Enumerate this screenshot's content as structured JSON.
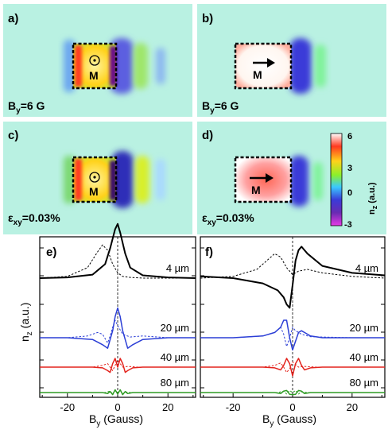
{
  "maps": [
    {
      "id": "a",
      "label": "a)",
      "field_main": "B",
      "field_sub": "y",
      "field_rest": "=6 G",
      "magnet_label": "M",
      "magnet_symbol": "⊙",
      "orientation": "out-of-plane",
      "strain": false
    },
    {
      "id": "b",
      "label": "b)",
      "field_main": "B",
      "field_sub": "y",
      "field_rest": "=6 G",
      "magnet_label": "M",
      "magnet_symbol": "→",
      "orientation": "in-plane",
      "strain": false
    },
    {
      "id": "c",
      "label": "c)",
      "field_main": "ε",
      "field_sub": "xy",
      "field_rest": "=0.03%",
      "magnet_label": "M",
      "magnet_symbol": "⊙",
      "orientation": "out-of-plane",
      "strain": true
    },
    {
      "id": "d",
      "label": "d)",
      "field_main": "ε",
      "field_sub": "xy",
      "field_rest": "=0.03%",
      "magnet_label": "M",
      "magnet_symbol": "→",
      "orientation": "in-plane",
      "strain": true
    }
  ],
  "colorbar": {
    "label_main": "n",
    "label_sub": "z",
    "label_unit": " (a.u.)",
    "ticks": [
      "6",
      "3",
      "0",
      "-3"
    ],
    "range": [
      -3,
      6
    ],
    "colors": [
      "#ffffff",
      "#ff3a20",
      "#ffd21a",
      "#8cf02a",
      "#3ac9ff",
      "#3a3bd8",
      "#6a2bb2",
      "#e63ae6"
    ]
  },
  "chart_data": [
    {
      "type": "line",
      "panel": "e)",
      "xlabel_main": "B",
      "xlabel_sub": "y",
      "xlabel_rest": " (Gauss)",
      "ylabel_main": "n",
      "ylabel_sub": "z",
      "ylabel_rest": " (a.u.)",
      "xlim": [
        -31,
        31
      ],
      "xticks": [
        -20,
        0,
        20
      ],
      "series": [
        {
          "name": "4 µm",
          "color": "#000000",
          "offset": 0.0,
          "x": [
            -31,
            -20,
            -10,
            -5,
            -3,
            -1,
            0,
            1,
            3,
            5,
            10,
            20,
            31
          ],
          "y": [
            0.0,
            0.02,
            0.1,
            0.4,
            0.85,
            1.4,
            1.55,
            1.3,
            0.7,
            0.3,
            0.08,
            0.02,
            0.0
          ],
          "dashed_x": [
            -31,
            -20,
            -12,
            -8,
            -6,
            -4,
            -2,
            0,
            2,
            5,
            10,
            20,
            31
          ],
          "dashed_y": [
            0.0,
            0.05,
            0.3,
            0.75,
            0.95,
            0.8,
            0.4,
            0.15,
            0.05,
            0.02,
            0.0,
            0.0,
            0.0
          ]
        },
        {
          "name": "20 µm",
          "color": "#2c3fd6",
          "offset": -0.95,
          "x": [
            -31,
            -20,
            -10,
            -6,
            -4,
            -2,
            -1,
            0,
            1,
            2,
            4,
            6,
            10,
            20,
            31
          ],
          "y": [
            0.0,
            0.0,
            -0.05,
            -0.2,
            -0.3,
            0.2,
            0.6,
            0.85,
            0.6,
            0.2,
            -0.3,
            -0.2,
            -0.05,
            0.0,
            0.0
          ],
          "dashed_x": [
            -31,
            -20,
            -12,
            -8,
            -6,
            -4,
            -3,
            -2,
            -1,
            0,
            2,
            5,
            10,
            20,
            31
          ],
          "dashed_y": [
            0.0,
            0.0,
            0.05,
            0.15,
            0.1,
            -0.15,
            0.05,
            0.3,
            0.5,
            0.35,
            0.1,
            0.02,
            0.05,
            0.0,
            0.0
          ]
        },
        {
          "name": "40 µm",
          "color": "#e3231d",
          "offset": -1.6,
          "x": [
            -31,
            -10,
            -6,
            -4,
            -3,
            -2,
            -1,
            0,
            1,
            2,
            3,
            4,
            6,
            10,
            31
          ],
          "y": [
            0.0,
            0.0,
            -0.02,
            -0.1,
            -0.15,
            0.1,
            0.25,
            0.0,
            0.25,
            0.1,
            -0.15,
            -0.1,
            -0.02,
            0.0,
            0.0
          ],
          "dashed_x": [
            -31,
            -10,
            -6,
            -4,
            -3,
            -2,
            -1,
            0,
            1,
            2,
            4,
            8,
            31
          ],
          "dashed_y": [
            0.0,
            0.0,
            0.05,
            0.1,
            0.0,
            -0.1,
            0.05,
            0.2,
            0.1,
            0.0,
            0.02,
            0.0,
            0.0
          ]
        },
        {
          "name": "80 µm",
          "color": "#2f9b24",
          "offset": -2.15,
          "x": [
            -31,
            -6,
            -4,
            -3,
            -2,
            -1,
            0,
            1,
            2,
            3,
            4,
            6,
            31
          ],
          "y": [
            0.0,
            0.0,
            -0.03,
            0.03,
            -0.06,
            0.08,
            -0.04,
            0.08,
            -0.06,
            0.03,
            -0.03,
            0.0,
            0.0
          ],
          "dashed_x": [
            -31,
            -5,
            -3,
            -2,
            -1,
            0,
            1,
            2,
            3,
            5,
            31
          ],
          "dashed_y": [
            0.0,
            0.0,
            0.04,
            -0.04,
            0.06,
            0.0,
            0.06,
            -0.04,
            0.02,
            0.0,
            0.0
          ]
        }
      ]
    },
    {
      "type": "line",
      "panel": "f)",
      "xlabel_main": "B",
      "xlabel_sub": "y",
      "xlabel_rest": " (Gauss)",
      "xlim": [
        -31,
        31
      ],
      "xticks": [
        -20,
        0,
        20
      ],
      "series": [
        {
          "name": "4 µm",
          "color": "#000000",
          "offset": 0.0,
          "x": [
            -31,
            -20,
            -10,
            -5,
            -3,
            -2,
            -1,
            0,
            1,
            2,
            3,
            5,
            10,
            20,
            31
          ],
          "y": [
            0.05,
            0.0,
            -0.15,
            -0.35,
            -0.55,
            -0.75,
            -0.85,
            -0.2,
            0.5,
            0.8,
            0.9,
            0.7,
            0.35,
            0.15,
            0.08
          ],
          "dashed_x": [
            -31,
            -20,
            -12,
            -8,
            -6,
            -4,
            -2,
            0,
            2,
            5,
            10,
            20,
            31
          ],
          "dashed_y": [
            0.0,
            0.05,
            0.25,
            0.55,
            0.7,
            0.6,
            0.3,
            0.1,
            0.2,
            0.25,
            0.15,
            0.05,
            0.0
          ]
        },
        {
          "name": "20 µm",
          "color": "#2c3fd6",
          "offset": -0.95,
          "x": [
            -31,
            -20,
            -10,
            -6,
            -4,
            -3,
            -2,
            -1,
            0,
            1,
            2,
            3,
            4,
            6,
            10,
            20,
            31
          ],
          "y": [
            0.0,
            0.0,
            0.05,
            0.15,
            0.3,
            0.5,
            0.5,
            0.0,
            -0.35,
            -0.1,
            0.15,
            0.2,
            0.15,
            0.05,
            0.0,
            0.0,
            0.0
          ],
          "dashed_x": [
            -31,
            -20,
            -10,
            -6,
            -4,
            -3,
            -2,
            -1,
            0,
            1,
            3,
            6,
            10,
            20,
            31
          ],
          "dashed_y": [
            0.0,
            0.0,
            0.05,
            0.15,
            0.3,
            0.1,
            -0.25,
            0.0,
            0.3,
            0.2,
            0.1,
            0.03,
            0.02,
            0.0,
            0.0
          ]
        },
        {
          "name": "40 µm",
          "color": "#e3231d",
          "offset": -1.6,
          "x": [
            -31,
            -10,
            -6,
            -4,
            -3,
            -2,
            -1,
            0,
            1,
            2,
            3,
            4,
            6,
            10,
            31
          ],
          "y": [
            0.0,
            0.0,
            -0.02,
            -0.08,
            0.05,
            0.25,
            0.1,
            -0.25,
            0.1,
            0.25,
            0.05,
            -0.08,
            -0.02,
            0.0,
            0.0
          ],
          "dashed_x": [
            -31,
            -10,
            -6,
            -4,
            -3,
            -2,
            -1,
            0,
            1,
            2,
            4,
            8,
            31
          ],
          "dashed_y": [
            0.0,
            0.0,
            0.05,
            0.12,
            0.0,
            -0.15,
            -0.05,
            0.15,
            0.08,
            0.0,
            0.02,
            0.0,
            0.0
          ]
        },
        {
          "name": "80 µm",
          "color": "#2f9b24",
          "offset": -2.15,
          "x": [
            -31,
            -6,
            -4,
            -3,
            -2,
            -1,
            0,
            1,
            2,
            3,
            4,
            6,
            31
          ],
          "y": [
            0.0,
            0.0,
            -0.03,
            0.04,
            0.06,
            -0.05,
            -0.06,
            -0.05,
            0.06,
            0.04,
            -0.03,
            0.0,
            0.0
          ],
          "dashed_x": [
            -31,
            -5,
            -3,
            -2,
            -1,
            0,
            1,
            2,
            3,
            5,
            31
          ],
          "dashed_y": [
            0.0,
            0.0,
            0.04,
            -0.04,
            0.06,
            0.0,
            0.06,
            -0.04,
            0.02,
            0.0,
            0.0
          ]
        }
      ]
    }
  ]
}
